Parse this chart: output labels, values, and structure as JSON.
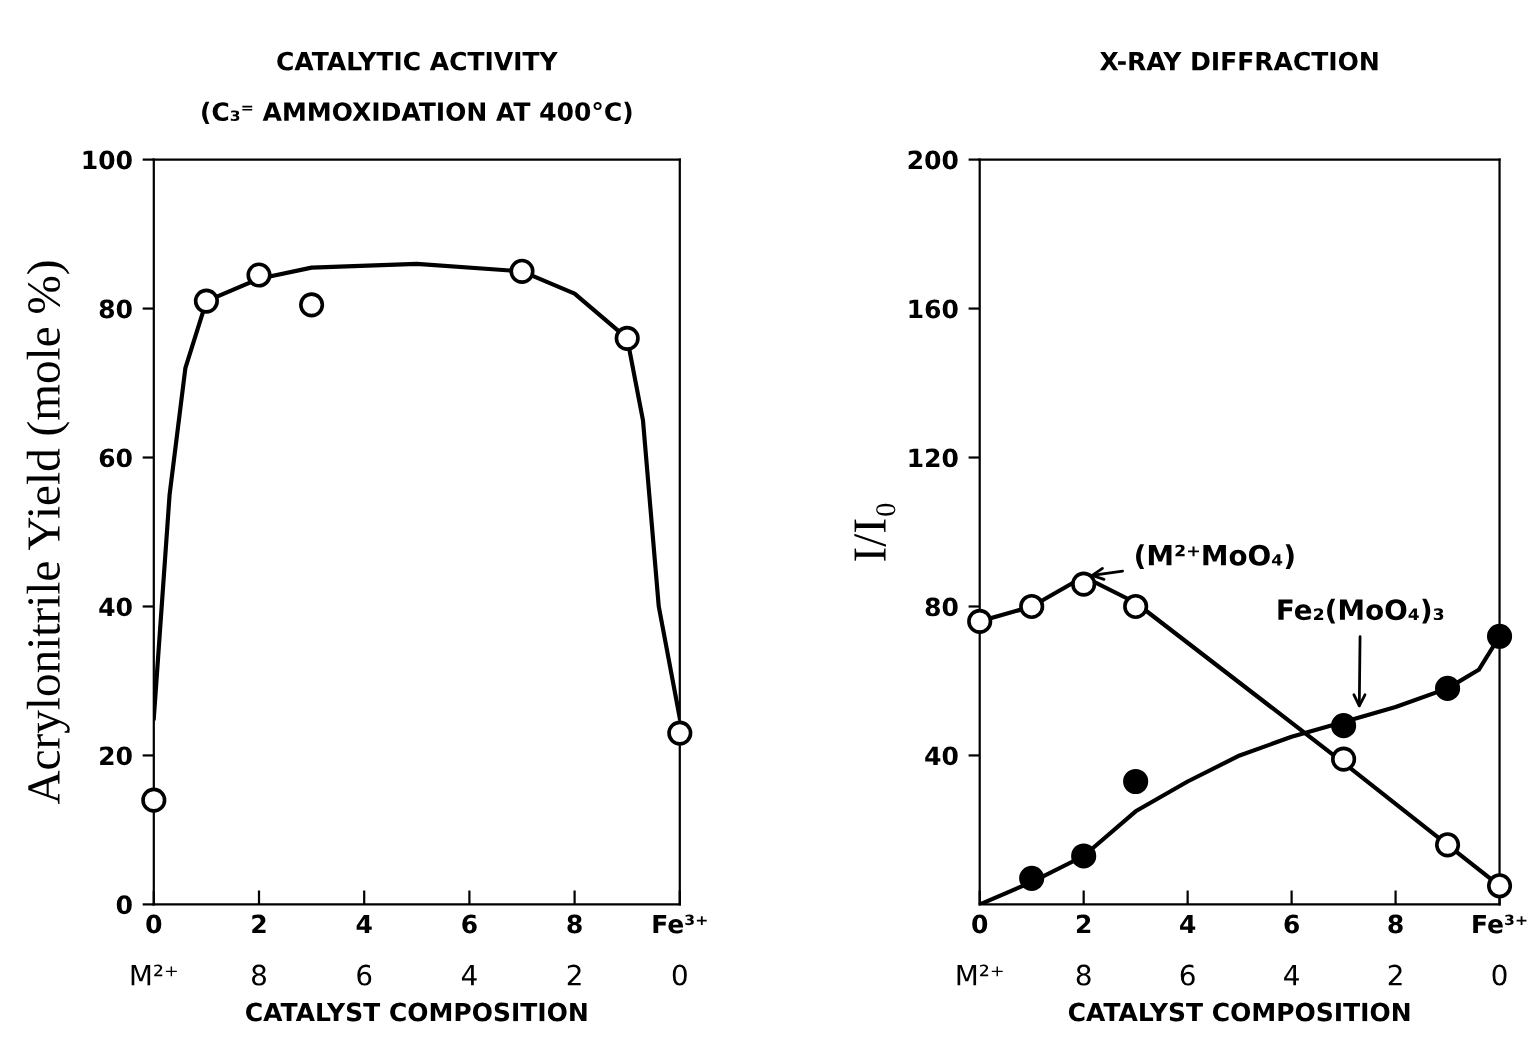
{
  "chart_data": [
    {
      "type": "scatter",
      "title": "CATALYTIC ACTIVITY",
      "subtitle": "(C₃⁼ AMMOXIDATION AT 400°C)",
      "xlabel": "CATALYST COMPOSITION",
      "ylabel": "Acrylonitrile Yield (mole %)",
      "series": [
        {
          "color": "#ffffff",
          "x": [
            0,
            1,
            2,
            3,
            7,
            9,
            10
          ],
          "values": [
            14,
            81,
            84.5,
            80.5,
            85,
            76,
            23
          ]
        },
        {
          "type": "line",
          "color": "#000000",
          "marker": "none",
          "x": [
            0,
            0.3,
            0.6,
            1,
            2,
            3,
            5,
            7,
            8,
            9,
            9.3,
            9.6,
            10
          ],
          "values": [
            25,
            55,
            72,
            81,
            84,
            85.5,
            86,
            85,
            82,
            76,
            65,
            40,
            25
          ]
        }
      ],
      "xlim": [
        0,
        10
      ],
      "xticks": [
        0,
        2,
        4,
        6,
        8,
        {
          "value": 10,
          "label": "Fe³⁺"
        }
      ],
      "x2lim": [
        10,
        0
      ],
      "x2ticks": [
        {
          "value": 10,
          "label": "M²⁺"
        },
        8,
        6,
        4,
        2,
        0
      ],
      "ylim": [
        0,
        100
      ],
      "yticks": [
        0,
        20,
        40,
        60,
        80,
        100
      ],
      "marker": "circle",
      "grid": false,
      "legend": false
    },
    {
      "type": "scatter",
      "title": "X-RAY DIFFRACTION",
      "xlabel": "CATALYST COMPOSITION",
      "ylabel": "I/I₀",
      "series": [
        {
          "color": "#ffffff",
          "x": [
            0,
            1,
            2,
            3,
            7,
            9,
            10
          ],
          "values": [
            76,
            80,
            86,
            80,
            39,
            16,
            5
          ]
        },
        {
          "type": "line",
          "color": "#000000",
          "marker": "none",
          "x": [
            0,
            1,
            2,
            3,
            7,
            9,
            10
          ],
          "values": [
            76,
            80,
            88,
            81,
            38,
            16,
            5
          ]
        },
        {
          "color": "#000000",
          "x": [
            1,
            2,
            3,
            7,
            9,
            10
          ],
          "values": [
            7,
            13,
            33,
            48,
            58,
            72
          ]
        },
        {
          "type": "line",
          "color": "#000000",
          "marker": "none",
          "x": [
            0,
            1,
            2,
            3,
            4,
            5,
            6,
            7,
            8,
            9,
            9.6,
            10
          ],
          "values": [
            0,
            6,
            13,
            25,
            33,
            40,
            45,
            49,
            53,
            58,
            63,
            72
          ]
        }
      ],
      "annotations": [
        {
          "text": "(M²⁺MoO₄)",
          "x": 2,
          "y": 88
        },
        {
          "text": "Fe₂(MoO₄)₃",
          "x": 7.3,
          "y": 51
        }
      ],
      "xlim": [
        0,
        10
      ],
      "xticks": [
        0,
        2,
        4,
        6,
        8,
        {
          "value": 10,
          "label": "Fe³⁺"
        }
      ],
      "x2lim": [
        10,
        0
      ],
      "x2ticks": [
        {
          "value": 10,
          "label": "M²⁺"
        },
        8,
        6,
        4,
        2,
        0
      ],
      "ylim": [
        0,
        200
      ],
      "yticks": [
        40,
        80,
        120,
        160,
        200
      ],
      "marker": "circle",
      "grid": false,
      "legend": false
    }
  ]
}
